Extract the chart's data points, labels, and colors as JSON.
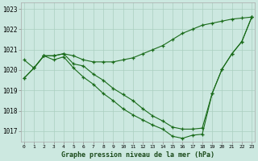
{
  "xlabel": "Graphe pression niveau de la mer (hPa)",
  "bg_color": "#cce8e0",
  "grid_color": "#aacfbf",
  "line_color": "#1a6b1a",
  "hours": [
    0,
    1,
    2,
    3,
    4,
    5,
    6,
    7,
    8,
    9,
    10,
    11,
    12,
    13,
    14,
    15,
    16,
    17,
    18,
    19,
    20,
    21,
    22,
    23
  ],
  "curve_top": [
    1020.5,
    1020.1,
    1020.7,
    1020.7,
    1020.8,
    1020.7,
    1020.5,
    1020.4,
    1020.4,
    1020.4,
    1020.5,
    1020.6,
    1020.8,
    1021.0,
    1021.2,
    1021.5,
    1021.8,
    1022.0,
    1022.2,
    1022.3,
    1022.4,
    1022.5,
    1022.55,
    1022.6
  ],
  "curve_mid": [
    1019.6,
    1020.1,
    1020.7,
    1020.7,
    1020.8,
    1020.3,
    1020.2,
    1019.8,
    1019.5,
    1019.1,
    1018.8,
    1018.5,
    1018.1,
    1017.75,
    1017.5,
    1017.2,
    1017.1,
    1017.1,
    1017.15,
    1018.85,
    1020.05,
    1020.8,
    1021.4,
    1022.6
  ],
  "curve_bot": [
    1019.6,
    1020.1,
    1020.7,
    1020.5,
    1020.65,
    1020.1,
    1019.65,
    1019.3,
    1018.85,
    1018.5,
    1018.1,
    1017.8,
    1017.55,
    1017.3,
    1017.1,
    1016.75,
    1016.65,
    1016.8,
    1016.85,
    1018.85,
    1020.05,
    1020.8,
    1021.4,
    1022.6
  ],
  "ylim_min": 1016.5,
  "ylim_max": 1023.3,
  "yticks": [
    1017,
    1018,
    1019,
    1020,
    1021,
    1022,
    1023
  ]
}
